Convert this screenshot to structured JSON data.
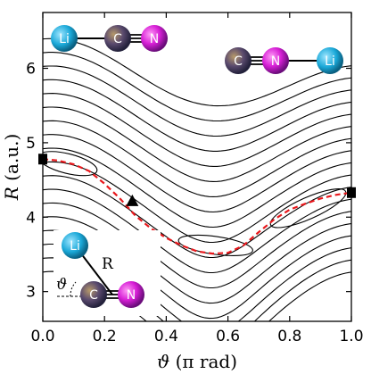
{
  "chart_data": {
    "type": "contour",
    "xlabel_symbol": "ϑ",
    "xlabel_unit": " (π rad)",
    "ylabel_symbol": "R",
    "ylabel_unit": " (a.u.)",
    "xlim": [
      0.0,
      1.0
    ],
    "ylim": [
      2.6,
      6.75
    ],
    "xticks": [
      "0.0",
      "0.2",
      "0.4",
      "0.6",
      "0.8",
      "1.0"
    ],
    "yticks": [
      "3",
      "4",
      "5",
      "6"
    ],
    "contour_levels": 18,
    "minimum_energy_path": {
      "style": "red-dashed",
      "x": [
        0.0,
        0.05,
        0.1,
        0.15,
        0.2,
        0.25,
        0.3,
        0.35,
        0.4,
        0.45,
        0.5,
        0.55,
        0.6,
        0.65,
        0.7,
        0.75,
        0.8,
        0.85,
        0.9,
        0.95,
        1.0
      ],
      "y": [
        4.78,
        4.76,
        4.71,
        4.62,
        4.45,
        4.25,
        4.02,
        3.85,
        3.72,
        3.62,
        3.54,
        3.51,
        3.52,
        3.62,
        3.8,
        3.97,
        4.1,
        4.18,
        4.25,
        4.3,
        4.33
      ]
    },
    "markers": [
      {
        "shape": "square",
        "x": 0.0,
        "y": 4.78
      },
      {
        "shape": "triangle",
        "x": 0.29,
        "y": 4.22
      },
      {
        "shape": "square",
        "x": 1.0,
        "y": 4.33
      }
    ]
  },
  "molecules": {
    "top_left": [
      "Li",
      "C",
      "N"
    ],
    "top_right": [
      "C",
      "N",
      "Li"
    ],
    "inset": {
      "atoms": [
        "Li",
        "C",
        "N"
      ],
      "bond_label": "R",
      "angle_label": "ϑ"
    }
  },
  "colors": {
    "contour": "#000000",
    "path": "#e8181c",
    "Li": "#1aa8d8",
    "C": "#5a4a6e",
    "N": "#d71fd6"
  }
}
